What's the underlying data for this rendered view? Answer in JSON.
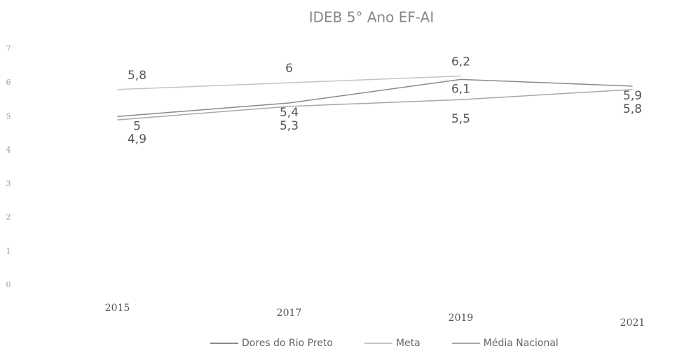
{
  "chart_data": {
    "type": "line",
    "title": "IDEB 5° Ano EF-AI",
    "categories": [
      "2015",
      "2017",
      "2019",
      "2021"
    ],
    "series": [
      {
        "name": "Dores do Rio Preto",
        "color": "#8a8a8a",
        "values": [
          5,
          5.4,
          6.1,
          5.9
        ],
        "value_labels": [
          "5",
          "5,4",
          "6,1",
          "5,9"
        ]
      },
      {
        "name": "Meta",
        "color": "#c4c4c4",
        "values": [
          5.8,
          6,
          6.2,
          null
        ],
        "value_labels": [
          "5,8",
          "6",
          "6,2",
          null
        ]
      },
      {
        "name": "Média Nacional",
        "color": "#a8a8a8",
        "values": [
          4.9,
          5.3,
          5.5,
          5.8
        ],
        "value_labels": [
          "4,9",
          "5,3",
          "5,5",
          "5,8"
        ]
      }
    ],
    "ylim": [
      0,
      7
    ],
    "yticks": [
      0,
      1,
      2,
      3,
      4,
      5,
      6,
      7
    ],
    "grid": false,
    "legend": "bottom"
  }
}
